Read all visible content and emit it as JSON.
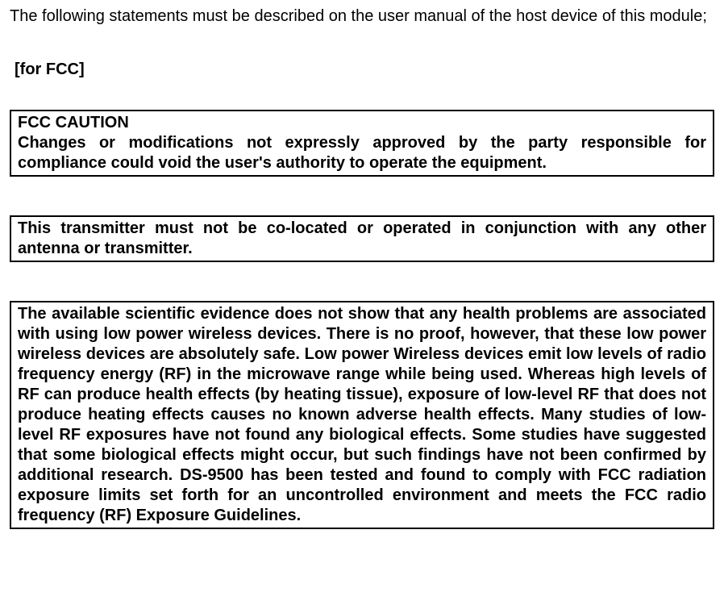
{
  "intro": "The following statements must be described on the user manual of the host device of this module;",
  "section_label": "[for FCC]",
  "box1_title": "FCC CAUTION",
  "box1_body": "Changes or modifications not expressly approved by the party responsible for compliance could void the user's authority to operate the equipment.",
  "box2_body": "This transmitter must not be co-located or operated in conjunction with any other antenna or transmitter.",
  "box3_body": "The available scientific evidence does not show that any health problems are associated with using low power wireless devices. There is no proof, however, that these low power wireless devices are absolutely safe. Low power Wireless devices emit low levels of radio frequency energy (RF) in the microwave range while being used.  Whereas high levels of RF can produce health effects (by heating tissue), exposure of low-level RF that does not produce heating effects causes no known adverse health effects. Many studies of low-level RF exposures have not found any biological effects. Some studies have suggested that some biological effects might occur, but such findings have not been confirmed by additional research. DS-9500 has been tested and found to comply with FCC radiation exposure limits set forth for an uncontrolled environment and meets the FCC radio frequency (RF) Exposure Guidelines."
}
